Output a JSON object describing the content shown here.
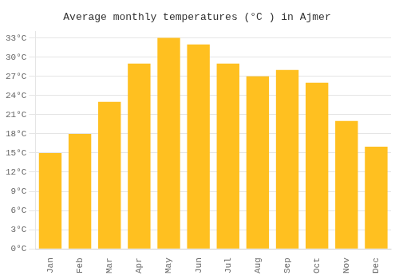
{
  "chart_data": {
    "type": "bar",
    "title": "Average monthly temperatures (°C ) in Ajmer",
    "categories": [
      "Jan",
      "Feb",
      "Mar",
      "Apr",
      "May",
      "Jun",
      "Jul",
      "Aug",
      "Sep",
      "Oct",
      "Nov",
      "Dec"
    ],
    "values": [
      15,
      18,
      23,
      29,
      33,
      32,
      29,
      27,
      28,
      26,
      20,
      16
    ],
    "color": "#FFC020",
    "ylim": [
      0,
      34
    ],
    "yticks": [
      {
        "value": 0,
        "label": "0°C"
      },
      {
        "value": 3,
        "label": "3°C"
      },
      {
        "value": 6,
        "label": "6°C"
      },
      {
        "value": 9,
        "label": "9°C"
      },
      {
        "value": 12,
        "label": "12°C"
      },
      {
        "value": 15,
        "label": "15°C"
      },
      {
        "value": 18,
        "label": "18°C"
      },
      {
        "value": 21,
        "label": "21°C"
      },
      {
        "value": 24,
        "label": "24°C"
      },
      {
        "value": 27,
        "label": "27°C"
      },
      {
        "value": 30,
        "label": "30°C"
      },
      {
        "value": 33,
        "label": "33°C"
      }
    ],
    "grid": true
  }
}
